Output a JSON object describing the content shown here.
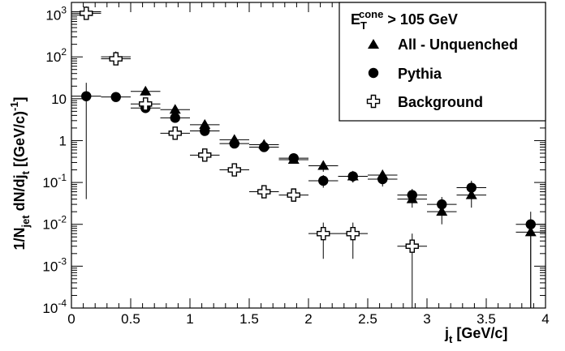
{
  "chart_data": {
    "type": "scatter",
    "title": "",
    "xlabel": "j",
    "xlabel_sub": "t",
    "xlabel_unit": " [GeV/c]",
    "ylabel_parts": [
      "1/N",
      "jet",
      " dN/dj",
      "t",
      " [(GeV/c)",
      "-1",
      "]"
    ],
    "xlim": [
      0,
      4
    ],
    "ylim": [
      0.0001,
      2000
    ],
    "yscale": "log",
    "x_ticks": [
      "0",
      "0.5",
      "1",
      "1.5",
      "2",
      "2.5",
      "3",
      "3.5",
      "4"
    ],
    "y_ticks": [
      {
        "base": "10",
        "exp": "-4",
        "value": 0.0001
      },
      {
        "base": "10",
        "exp": "-3",
        "value": 0.001
      },
      {
        "base": "10",
        "exp": "-2",
        "value": 0.01
      },
      {
        "base": "10",
        "exp": "-1",
        "value": 0.1
      },
      {
        "base": "",
        "exp": "",
        "label": "1",
        "value": 1
      },
      {
        "base": "",
        "exp": "",
        "label": "10",
        "value": 10
      },
      {
        "base": "10",
        "exp": "2",
        "value": 100
      },
      {
        "base": "10",
        "exp": "3",
        "value": 1000
      }
    ],
    "legend": {
      "placement": "top-right",
      "header_base": "E",
      "header_sub": "T",
      "header_sup": "cone",
      "header_rest": " > 105 GeV"
    },
    "series": [
      {
        "name": "All - Unquenched",
        "marker": "triangle",
        "points": [
          {
            "x": 0.125,
            "y": 1200,
            "xerr": 0.125,
            "ylo": 1050,
            "yhi": 1400
          },
          {
            "x": 0.375,
            "y": 100,
            "xerr": 0.125,
            "ylo": 85,
            "yhi": 120
          },
          {
            "x": 0.625,
            "y": 15,
            "xerr": 0.125,
            "ylo": 12,
            "yhi": 18
          },
          {
            "x": 0.875,
            "y": 5.5,
            "xerr": 0.125,
            "ylo": 4.5,
            "yhi": 6.5
          },
          {
            "x": 1.125,
            "y": 2.4,
            "xerr": 0.125,
            "ylo": 2.0,
            "yhi": 2.8
          },
          {
            "x": 1.375,
            "y": 1.05,
            "xerr": 0.125,
            "ylo": 0.85,
            "yhi": 1.25
          },
          {
            "x": 1.625,
            "y": 0.8,
            "xerr": 0.125,
            "ylo": 0.65,
            "yhi": 0.95
          },
          {
            "x": 1.875,
            "y": 0.35,
            "xerr": 0.125,
            "ylo": 0.28,
            "yhi": 0.42
          },
          {
            "x": 2.125,
            "y": 0.25,
            "xerr": 0.125,
            "ylo": 0.18,
            "yhi": 0.33
          },
          {
            "x": 2.375,
            "y": 0.14,
            "xerr": 0.125,
            "ylo": 0.1,
            "yhi": 0.18
          },
          {
            "x": 2.625,
            "y": 0.15,
            "xerr": 0.125,
            "ylo": 0.09,
            "yhi": 0.2
          },
          {
            "x": 2.875,
            "y": 0.04,
            "xerr": 0.125,
            "ylo": 0.025,
            "yhi": 0.06
          },
          {
            "x": 3.125,
            "y": 0.02,
            "xerr": 0.125,
            "ylo": 0.01,
            "yhi": 0.03
          },
          {
            "x": 3.375,
            "y": 0.05,
            "xerr": 0.125,
            "ylo": 0.025,
            "yhi": 0.09
          },
          {
            "x": 3.875,
            "y": 0.0065,
            "xerr": 0.125,
            "ylo": 0.0001,
            "yhi": 0.012
          }
        ]
      },
      {
        "name": "Pythia",
        "marker": "circle",
        "points": [
          {
            "x": 0.125,
            "y": 11.5,
            "xerr": 0.125,
            "ylo": 0.04,
            "yhi": 24
          },
          {
            "x": 0.375,
            "y": 11,
            "xerr": 0.125,
            "ylo": 10,
            "yhi": 12
          },
          {
            "x": 0.625,
            "y": 6,
            "xerr": 0.125,
            "ylo": 5,
            "yhi": 7
          },
          {
            "x": 0.875,
            "y": 3.5,
            "xerr": 0.125,
            "ylo": 2.8,
            "yhi": 4.2
          },
          {
            "x": 1.125,
            "y": 1.7,
            "xerr": 0.125,
            "ylo": 1.4,
            "yhi": 2.0
          },
          {
            "x": 1.375,
            "y": 0.85,
            "xerr": 0.125,
            "ylo": 0.7,
            "yhi": 1.0
          },
          {
            "x": 1.625,
            "y": 0.7,
            "xerr": 0.125,
            "ylo": 0.55,
            "yhi": 0.85
          },
          {
            "x": 1.875,
            "y": 0.38,
            "xerr": 0.125,
            "ylo": 0.3,
            "yhi": 0.45
          },
          {
            "x": 2.125,
            "y": 0.11,
            "xerr": 0.125,
            "ylo": 0.075,
            "yhi": 0.15
          },
          {
            "x": 2.375,
            "y": 0.14,
            "xerr": 0.125,
            "ylo": 0.1,
            "yhi": 0.18
          },
          {
            "x": 2.625,
            "y": 0.12,
            "xerr": 0.125,
            "ylo": 0.08,
            "yhi": 0.17
          },
          {
            "x": 2.875,
            "y": 0.05,
            "xerr": 0.125,
            "ylo": 0.032,
            "yhi": 0.07
          },
          {
            "x": 3.125,
            "y": 0.03,
            "xerr": 0.125,
            "ylo": 0.018,
            "yhi": 0.045
          },
          {
            "x": 3.375,
            "y": 0.075,
            "xerr": 0.125,
            "ylo": 0.045,
            "yhi": 0.11
          },
          {
            "x": 3.875,
            "y": 0.01,
            "xerr": 0.125,
            "ylo": 0.0001,
            "yhi": 0.02
          }
        ]
      },
      {
        "name": "Background",
        "marker": "open-cross",
        "points": [
          {
            "x": 0.125,
            "y": 1100,
            "xerr": 0.125,
            "ylo": 950,
            "yhi": 1250
          },
          {
            "x": 0.375,
            "y": 90,
            "xerr": 0.125,
            "ylo": 75,
            "yhi": 105
          },
          {
            "x": 0.625,
            "y": 7.5,
            "xerr": 0.125,
            "ylo": 6,
            "yhi": 9
          },
          {
            "x": 0.875,
            "y": 1.5,
            "xerr": 0.125,
            "ylo": 1.2,
            "yhi": 1.8
          },
          {
            "x": 1.125,
            "y": 0.45,
            "xerr": 0.125,
            "ylo": 0.35,
            "yhi": 0.55
          },
          {
            "x": 1.375,
            "y": 0.2,
            "xerr": 0.125,
            "ylo": 0.15,
            "yhi": 0.25
          },
          {
            "x": 1.625,
            "y": 0.06,
            "xerr": 0.125,
            "ylo": 0.045,
            "yhi": 0.075
          },
          {
            "x": 1.875,
            "y": 0.05,
            "xerr": 0.125,
            "ylo": 0.038,
            "yhi": 0.063
          },
          {
            "x": 2.125,
            "y": 0.006,
            "xerr": 0.125,
            "ylo": 0.0015,
            "yhi": 0.011
          },
          {
            "x": 2.375,
            "y": 0.006,
            "xerr": 0.125,
            "ylo": 0.0015,
            "yhi": 0.011
          },
          {
            "x": 2.875,
            "y": 0.003,
            "xerr": 0.125,
            "ylo": 0.0001,
            "yhi": 0.006
          }
        ]
      }
    ]
  }
}
